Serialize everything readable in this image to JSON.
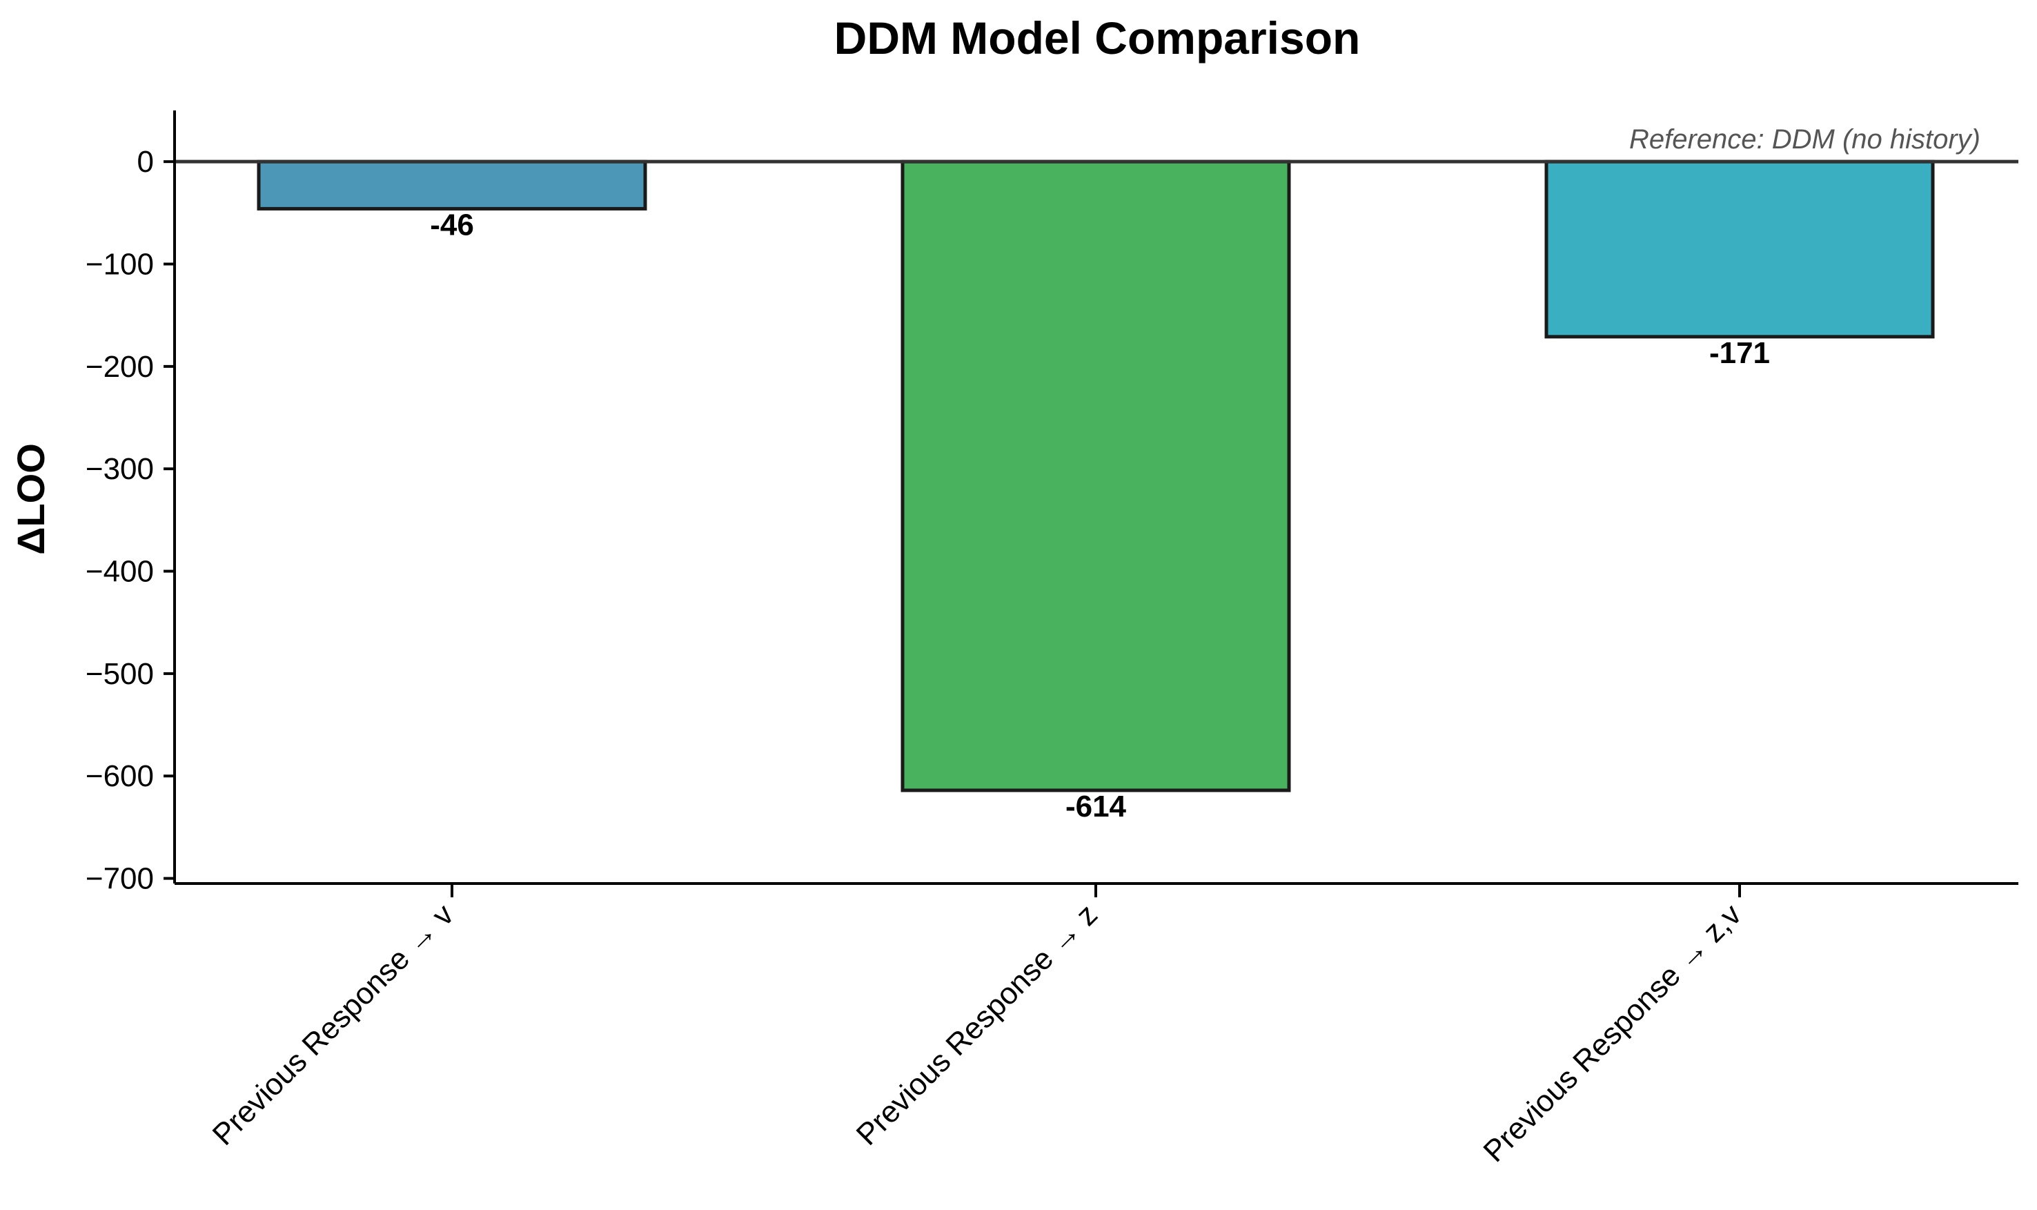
{
  "chart_data": {
    "type": "bar",
    "title": "DDM Model Comparison",
    "xlabel": "",
    "ylabel": "ΔLOO",
    "categories": [
      "Previous Response → v",
      "Previous Response → z",
      "Previous Response → z,v"
    ],
    "values": [
      -46,
      -614,
      -171
    ],
    "value_labels": [
      "-46",
      "-614",
      "-171"
    ],
    "bar_colors": [
      "#4c97b8",
      "#48b25f",
      "#3bafc2"
    ],
    "bar_edge_color": "#1a1a1a",
    "ylim": [
      -705,
      50
    ],
    "yticks": [
      0,
      -100,
      -200,
      -300,
      -400,
      -500,
      -600,
      -700
    ],
    "ytick_labels": [
      "0",
      "−100",
      "−200",
      "−300",
      "−400",
      "−500",
      "−600",
      "−700"
    ],
    "reference_line": 0,
    "annotation": "Reference: DDM (no history)",
    "grid": false
  }
}
